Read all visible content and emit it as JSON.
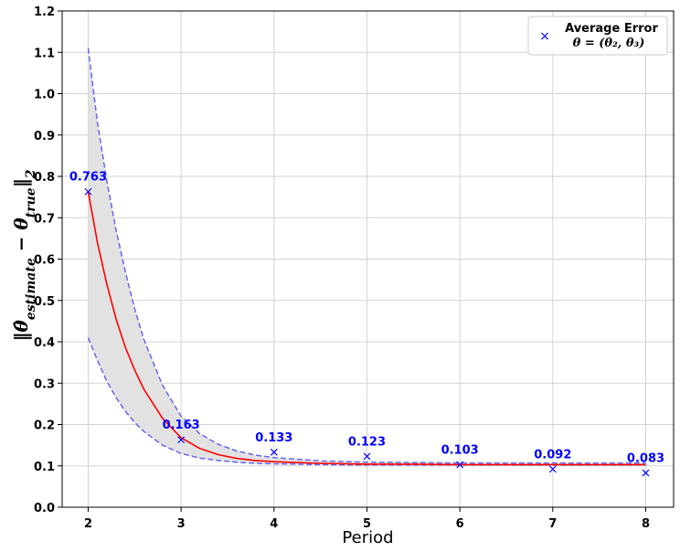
{
  "chart_data": {
    "type": "scatter",
    "title": "",
    "xlabel": "Period",
    "ylabel_parts": {
      "open": "‖",
      "estimate_symbol": "θ̂",
      "estimate_sub": "estimate",
      "minus": " − ",
      "true_symbol": "θ",
      "true_sub": "true",
      "close": "‖",
      "norm_sub": "2"
    },
    "xlim": [
      1.72,
      8.3
    ],
    "ylim": [
      0.0,
      1.2
    ],
    "xticks": [
      2,
      3,
      4,
      5,
      6,
      7,
      8
    ],
    "yticks": [
      0.0,
      0.1,
      0.2,
      0.3,
      0.4,
      0.5,
      0.6,
      0.7,
      0.8,
      0.9,
      1.0,
      1.1,
      1.2
    ],
    "grid": true,
    "legend_position": "top-right",
    "legend": {
      "marker": "×",
      "line1": "Average Error",
      "line2": "θ = (θ₂, θ₃)"
    },
    "colors": {
      "points": "#0000ff",
      "fit": "#ff0000",
      "band_edge": "#6666ee",
      "band_fill": "#e0e0e0",
      "grid": "#d3d3d3"
    },
    "series": [
      {
        "name": "Average Error",
        "x": [
          2,
          3,
          4,
          5,
          6,
          7,
          8
        ],
        "y": [
          0.763,
          0.163,
          0.133,
          0.123,
          0.103,
          0.092,
          0.083
        ],
        "labels": [
          "0.763",
          "0.163",
          "0.133",
          "0.123",
          "0.103",
          "0.092",
          "0.083"
        ]
      }
    ],
    "fit_curve": {
      "x": [
        2.0,
        2.1,
        2.2,
        2.3,
        2.4,
        2.5,
        2.6,
        2.8,
        3.0,
        3.2,
        3.4,
        3.6,
        3.8,
        4.0,
        4.5,
        5.0,
        5.5,
        6.0,
        6.5,
        7.0,
        7.5,
        8.0
      ],
      "y": [
        0.763,
        0.64,
        0.54,
        0.455,
        0.387,
        0.332,
        0.285,
        0.215,
        0.168,
        0.142,
        0.127,
        0.118,
        0.113,
        0.11,
        0.106,
        0.104,
        0.104,
        0.103,
        0.103,
        0.103,
        0.103,
        0.103
      ]
    },
    "band_upper": {
      "x": [
        2.0,
        2.1,
        2.2,
        2.3,
        2.4,
        2.5,
        2.6,
        2.8,
        3.0,
        3.2,
        3.4,
        3.6,
        3.8,
        4.0,
        4.5,
        5.0,
        5.5,
        6.0,
        6.5,
        7.0,
        7.5,
        8.0
      ],
      "y": [
        1.11,
        0.93,
        0.79,
        0.67,
        0.57,
        0.48,
        0.405,
        0.295,
        0.22,
        0.178,
        0.152,
        0.136,
        0.126,
        0.12,
        0.112,
        0.109,
        0.108,
        0.107,
        0.107,
        0.107,
        0.107,
        0.107
      ]
    },
    "band_lower": {
      "x": [
        2.0,
        2.1,
        2.2,
        2.3,
        2.4,
        2.5,
        2.6,
        2.8,
        3.0,
        3.2,
        3.4,
        3.6,
        3.8,
        4.0,
        4.5,
        5.0,
        5.5,
        6.0,
        6.5,
        7.0,
        7.5,
        8.0
      ],
      "y": [
        0.41,
        0.355,
        0.305,
        0.265,
        0.232,
        0.205,
        0.183,
        0.15,
        0.13,
        0.119,
        0.113,
        0.109,
        0.106,
        0.105,
        0.103,
        0.102,
        0.102,
        0.102,
        0.102,
        0.102,
        0.102,
        0.102
      ]
    }
  }
}
